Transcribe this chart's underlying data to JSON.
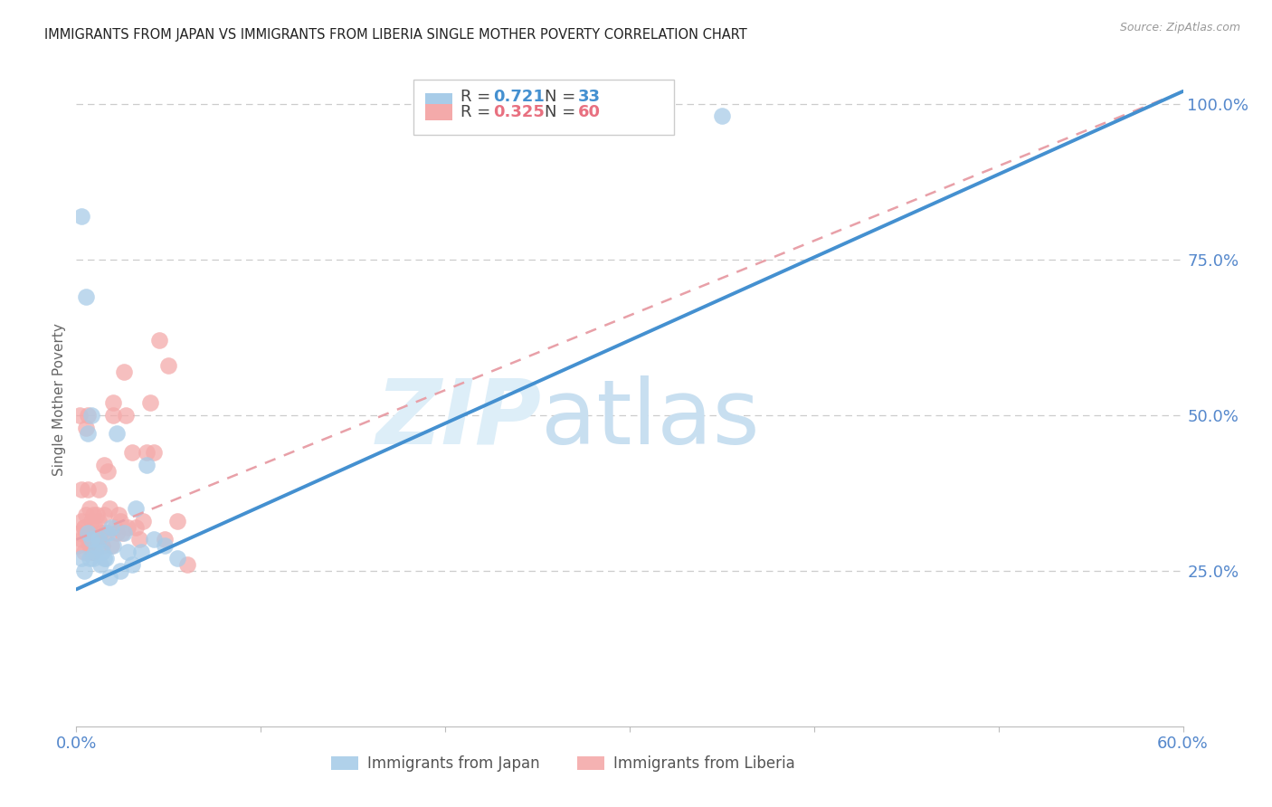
{
  "title": "IMMIGRANTS FROM JAPAN VS IMMIGRANTS FROM LIBERIA SINGLE MOTHER POVERTY CORRELATION CHART",
  "source": "Source: ZipAtlas.com",
  "xlabel_japan": "Immigrants from Japan",
  "xlabel_liberia": "Immigrants from Liberia",
  "ylabel": "Single Mother Poverty",
  "xlim": [
    0.0,
    0.6
  ],
  "ylim": [
    0.0,
    1.05
  ],
  "x_tick_labels": [
    "0.0%",
    "",
    "",
    "",
    "",
    "",
    "60.0%"
  ],
  "x_ticks": [
    0.0,
    0.1,
    0.2,
    0.3,
    0.4,
    0.5,
    0.6
  ],
  "y_tick_labels": [
    "25.0%",
    "50.0%",
    "75.0%",
    "100.0%"
  ],
  "y_ticks": [
    0.25,
    0.5,
    0.75,
    1.0
  ],
  "R_japan": "0.721",
  "N_japan": "33",
  "R_liberia": "0.325",
  "N_liberia": "60",
  "japan_scatter_color": "#a8cce8",
  "liberia_scatter_color": "#f4aaaa",
  "japan_line_color": "#4490d0",
  "liberia_line_color": "#e8a0a8",
  "legend_box_japan": "#a8cce8",
  "legend_box_liberia": "#f4aaaa",
  "japan_line_x0": 0.0,
  "japan_line_y0": 0.22,
  "japan_line_x1": 0.6,
  "japan_line_y1": 1.02,
  "liberia_line_x0": 0.0,
  "liberia_line_y0": 0.3,
  "liberia_line_x1": 0.6,
  "liberia_line_y1": 1.02,
  "japan_x": [
    0.003,
    0.005,
    0.006,
    0.007,
    0.008,
    0.009,
    0.01,
    0.011,
    0.012,
    0.013,
    0.014,
    0.015,
    0.016,
    0.017,
    0.018,
    0.019,
    0.02,
    0.022,
    0.024,
    0.026,
    0.028,
    0.03,
    0.032,
    0.035,
    0.038,
    0.042,
    0.048,
    0.055,
    0.003,
    0.004,
    0.006,
    0.008,
    0.35
  ],
  "japan_y": [
    0.82,
    0.69,
    0.47,
    0.27,
    0.5,
    0.27,
    0.28,
    0.29,
    0.3,
    0.26,
    0.28,
    0.27,
    0.27,
    0.31,
    0.24,
    0.32,
    0.29,
    0.47,
    0.25,
    0.31,
    0.28,
    0.26,
    0.35,
    0.28,
    0.42,
    0.3,
    0.29,
    0.27,
    0.27,
    0.25,
    0.31,
    0.3,
    0.98
  ],
  "liberia_x": [
    0.001,
    0.002,
    0.002,
    0.003,
    0.003,
    0.004,
    0.004,
    0.005,
    0.005,
    0.006,
    0.006,
    0.007,
    0.007,
    0.008,
    0.008,
    0.009,
    0.009,
    0.01,
    0.01,
    0.011,
    0.011,
    0.012,
    0.013,
    0.014,
    0.015,
    0.016,
    0.017,
    0.018,
    0.019,
    0.02,
    0.021,
    0.022,
    0.023,
    0.024,
    0.025,
    0.026,
    0.027,
    0.028,
    0.03,
    0.032,
    0.034,
    0.036,
    0.038,
    0.04,
    0.042,
    0.045,
    0.048,
    0.05,
    0.055,
    0.06,
    0.003,
    0.004,
    0.005,
    0.006,
    0.007,
    0.008,
    0.01,
    0.012,
    0.015,
    0.02
  ],
  "liberia_y": [
    0.29,
    0.31,
    0.5,
    0.3,
    0.33,
    0.28,
    0.32,
    0.31,
    0.34,
    0.3,
    0.5,
    0.29,
    0.31,
    0.29,
    0.33,
    0.34,
    0.28,
    0.3,
    0.32,
    0.34,
    0.3,
    0.33,
    0.31,
    0.29,
    0.34,
    0.31,
    0.41,
    0.35,
    0.29,
    0.5,
    0.32,
    0.31,
    0.34,
    0.33,
    0.31,
    0.57,
    0.5,
    0.32,
    0.44,
    0.32,
    0.3,
    0.33,
    0.44,
    0.52,
    0.44,
    0.62,
    0.3,
    0.58,
    0.33,
    0.26,
    0.38,
    0.32,
    0.48,
    0.38,
    0.35,
    0.28,
    0.3,
    0.38,
    0.42,
    0.52
  ]
}
